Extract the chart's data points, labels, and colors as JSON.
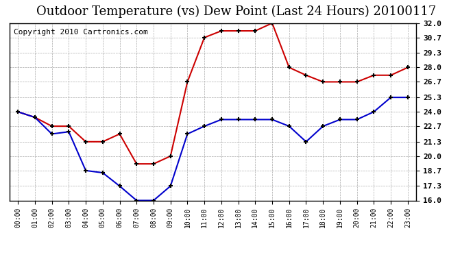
{
  "title": "Outdoor Temperature (vs) Dew Point (Last 24 Hours) 20100117",
  "copyright": "Copyright 2010 Cartronics.com",
  "x_labels": [
    "00:00",
    "01:00",
    "02:00",
    "03:00",
    "04:00",
    "05:00",
    "06:00",
    "07:00",
    "08:00",
    "09:00",
    "10:00",
    "11:00",
    "12:00",
    "13:00",
    "14:00",
    "15:00",
    "16:00",
    "17:00",
    "18:00",
    "19:00",
    "20:00",
    "21:00",
    "22:00",
    "23:00"
  ],
  "temp_data": [
    24.0,
    23.5,
    22.0,
    22.2,
    18.7,
    18.5,
    17.3,
    16.0,
    16.0,
    17.3,
    22.0,
    22.7,
    23.3,
    23.3,
    23.3,
    23.3,
    22.7,
    21.3,
    22.7,
    23.3,
    23.3,
    24.0,
    25.3,
    25.3
  ],
  "dew_data": [
    24.0,
    23.5,
    22.7,
    22.7,
    21.3,
    21.3,
    22.0,
    19.3,
    19.3,
    20.0,
    26.7,
    30.7,
    31.3,
    31.3,
    31.3,
    32.0,
    28.0,
    27.3,
    26.7,
    26.7,
    26.7,
    27.3,
    27.3,
    28.0
  ],
  "temp_color": "#0000cc",
  "dew_color": "#cc0000",
  "y_min": 16.0,
  "y_max": 32.0,
  "y_ticks": [
    16.0,
    17.3,
    18.7,
    20.0,
    21.3,
    22.7,
    24.0,
    25.3,
    26.7,
    28.0,
    29.3,
    30.7,
    32.0
  ],
  "background_color": "#ffffff",
  "grid_color": "#aaaaaa",
  "title_fontsize": 13,
  "copyright_fontsize": 8
}
